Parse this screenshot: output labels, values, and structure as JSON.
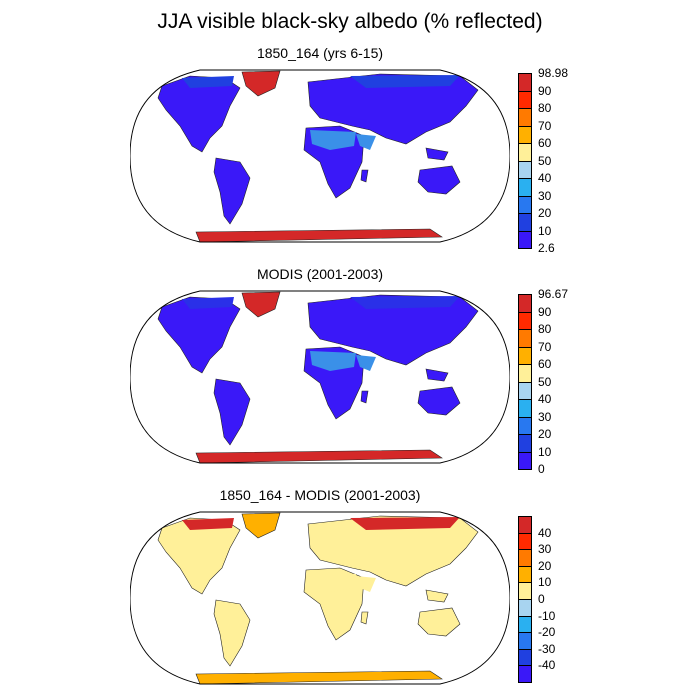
{
  "title": "JJA visible black-sky albedo (% reflected)",
  "panels": [
    {
      "title": "1850_164 (yrs 6-15)",
      "legend_labels": [
        "98.98",
        "90",
        "80",
        "70",
        "60",
        "50",
        "40",
        "30",
        "20",
        "10",
        "2.6"
      ],
      "colors": [
        "#d42828",
        "#ff2a00",
        "#ff7a00",
        "#ffb000",
        "#fff099",
        "#a8d4f0",
        "#2ab0f0",
        "#2878f0",
        "#2040e0",
        "#3a18f8"
      ],
      "fills": {
        "land": "#3a18f8",
        "ice": "#d42828",
        "desert": "#3a90e8",
        "highlat": "#2040e0"
      }
    },
    {
      "title": "MODIS (2001-2003)",
      "legend_labels": [
        "96.67",
        "90",
        "80",
        "70",
        "60",
        "50",
        "40",
        "30",
        "20",
        "10",
        "0"
      ],
      "colors": [
        "#d42828",
        "#ff2a00",
        "#ff7a00",
        "#ffb000",
        "#fff099",
        "#a8d4f0",
        "#2ab0f0",
        "#2878f0",
        "#2040e0",
        "#3a18f8"
      ],
      "fills": {
        "land": "#3a18f8",
        "ice": "#d42828",
        "desert": "#3a90e8",
        "highlat": "#2a30e8"
      }
    },
    {
      "title": "1850_164 - MODIS (2001-2003)",
      "legend_labels": [
        "40",
        "30",
        "20",
        "10",
        "0",
        "-10",
        "-20",
        "-30",
        "-40"
      ],
      "colors": [
        "#d42828",
        "#ff2a00",
        "#ff7a00",
        "#ffb000",
        "#fff099",
        "#a8d4f0",
        "#2ab0f0",
        "#2878f0",
        "#2040e0",
        "#3a18f8"
      ],
      "fills": {
        "land": "#fff099",
        "ice": "#ffb000",
        "desert": "#fff099",
        "highlat": "#d42828"
      }
    }
  ]
}
